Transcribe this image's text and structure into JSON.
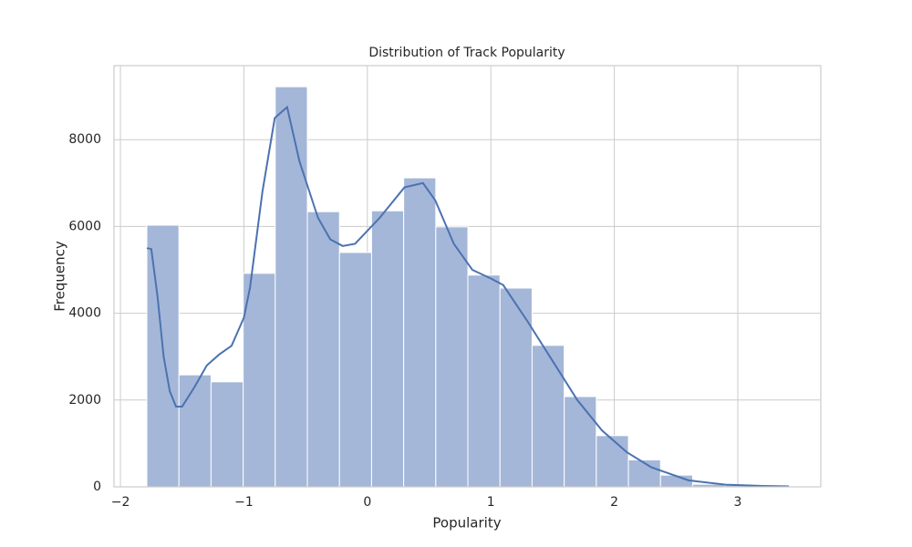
{
  "chart_data": {
    "type": "histogram",
    "title": "Distribution of Track Popularity",
    "xlabel": "Popularity",
    "ylabel": "Frequency",
    "bins": [
      -1.786,
      -1.526,
      -1.266,
      -1.006,
      -0.746,
      -0.486,
      -0.226,
      0.034,
      0.294,
      0.554,
      0.814,
      1.074,
      1.334,
      1.594,
      1.854,
      2.114,
      2.374,
      2.634,
      2.894,
      3.154,
      3.414
    ],
    "counts": [
      6030,
      2580,
      2420,
      4920,
      9220,
      6340,
      5400,
      6360,
      7120,
      5990,
      4880,
      4580,
      3260,
      2080,
      1180,
      620,
      270,
      60,
      40,
      30
    ],
    "color": "#a4b7d8",
    "kde": {
      "color": "#4c72b0",
      "x": [
        -1.786,
        -1.75,
        -1.7,
        -1.65,
        -1.6,
        -1.55,
        -1.5,
        -1.4,
        -1.3,
        -1.2,
        -1.1,
        -1.0,
        -0.95,
        -0.85,
        -0.75,
        -0.65,
        -0.55,
        -0.4,
        -0.3,
        -0.2,
        -0.1,
        0.1,
        0.3,
        0.45,
        0.55,
        0.7,
        0.85,
        1.0,
        1.1,
        1.3,
        1.5,
        1.7,
        1.9,
        2.1,
        2.3,
        2.6,
        2.9,
        3.2,
        3.414
      ],
      "values": [
        5500,
        5480,
        4400,
        3000,
        2200,
        1850,
        1850,
        2300,
        2800,
        3050,
        3250,
        3900,
        4600,
        6800,
        8500,
        8750,
        7500,
        6200,
        5700,
        5550,
        5600,
        6200,
        6900,
        7000,
        6600,
        5600,
        5000,
        4800,
        4650,
        3800,
        2900,
        2000,
        1300,
        800,
        450,
        150,
        50,
        20,
        10
      ]
    },
    "xlim": [
      -2.052,
      3.672
    ],
    "ylim": [
      0,
      9706
    ],
    "xticks": [
      {
        "value": -2,
        "label": "−2"
      },
      {
        "value": -1,
        "label": "−1"
      },
      0,
      1,
      2,
      3
    ],
    "yticks": [
      0,
      2000,
      4000,
      6000,
      8000
    ],
    "grid": true
  }
}
